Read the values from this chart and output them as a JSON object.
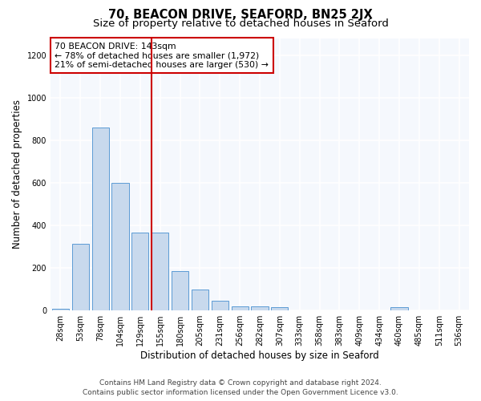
{
  "title1": "70, BEACON DRIVE, SEAFORD, BN25 2JX",
  "title2": "Size of property relative to detached houses in Seaford",
  "xlabel": "Distribution of detached houses by size in Seaford",
  "ylabel": "Number of detached properties",
  "bar_labels": [
    "28sqm",
    "53sqm",
    "78sqm",
    "104sqm",
    "129sqm",
    "155sqm",
    "180sqm",
    "205sqm",
    "231sqm",
    "256sqm",
    "282sqm",
    "307sqm",
    "333sqm",
    "358sqm",
    "383sqm",
    "409sqm",
    "434sqm",
    "460sqm",
    "485sqm",
    "511sqm",
    "536sqm"
  ],
  "bar_values": [
    10,
    315,
    860,
    600,
    365,
    365,
    185,
    100,
    45,
    20,
    20,
    15,
    0,
    0,
    0,
    0,
    0,
    15,
    0,
    0,
    0
  ],
  "bar_color": "#c8d9ed",
  "bar_edge_color": "#5b9bd5",
  "ylim": [
    0,
    1280
  ],
  "yticks": [
    0,
    200,
    400,
    600,
    800,
    1000,
    1200
  ],
  "vline_index": 5,
  "vline_color": "#cc0000",
  "annotation_title": "70 BEACON DRIVE: 143sqm",
  "annotation_line1": "← 78% of detached houses are smaller (1,972)",
  "annotation_line2": "21% of semi-detached houses are larger (530) →",
  "annotation_box_color": "#ffffff",
  "annotation_box_edge_color": "#cc0000",
  "footer1": "Contains HM Land Registry data © Crown copyright and database right 2024.",
  "footer2": "Contains public sector information licensed under the Open Government Licence v3.0.",
  "bg_color": "#ffffff",
  "plot_bg_color": "#f5f8fd",
  "grid_color": "#ffffff",
  "title1_fontsize": 10.5,
  "title2_fontsize": 9.5,
  "label_fontsize": 8.5,
  "tick_fontsize": 7,
  "footer_fontsize": 6.5,
  "annotation_fontsize": 7.8
}
